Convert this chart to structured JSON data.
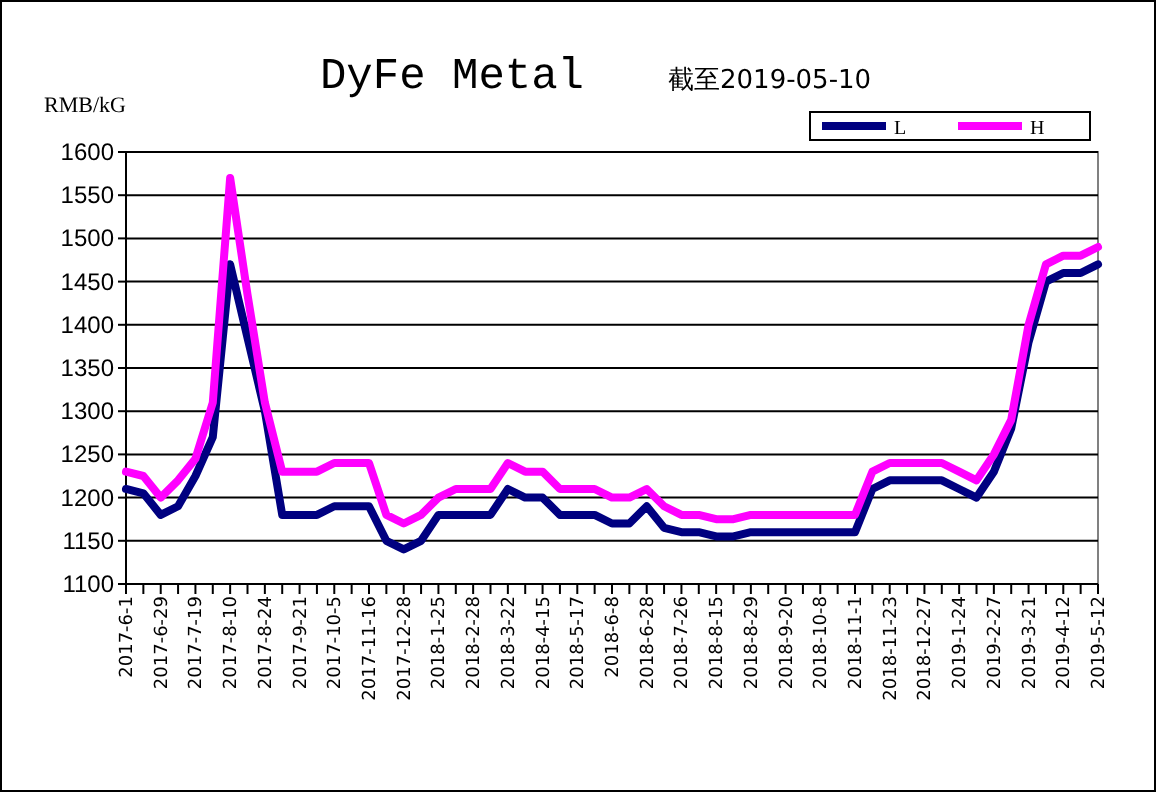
{
  "chart_data": {
    "type": "line",
    "title": "DyFe Metal",
    "subtitle": "截至2019-05-10",
    "ylabel": "RMB/kG",
    "categories": [
      "2017-6-1",
      null,
      "2017-6-29",
      null,
      "2017-7-19",
      null,
      "2017-8-10",
      null,
      "2017-8-24",
      null,
      "2017-9-21",
      null,
      "2017-10-5",
      null,
      "2017-11-16",
      null,
      "2017-12-28",
      null,
      "2018-1-25",
      null,
      "2018-2-28",
      null,
      "2018-3-22",
      null,
      "2018-4-15",
      null,
      "2018-5-17",
      null,
      "2018-6-8",
      null,
      "2018-6-28",
      null,
      "2018-7-26",
      null,
      "2018-8-15",
      null,
      "2018-8-29",
      null,
      "2018-9-20",
      null,
      "2018-10-8",
      null,
      "2018-11-1",
      null,
      "2018-11-23",
      null,
      "2018-12-27",
      null,
      "2019-1-24",
      null,
      "2019-2-27",
      null,
      "2019-3-21",
      null,
      "2019-4-12",
      null,
      "2019-5-12"
    ],
    "series": [
      {
        "name": "L",
        "color": "#000080",
        "values": [
          1210,
          1205,
          1180,
          1190,
          1225,
          1270,
          1470,
          1385,
          1300,
          1180,
          1180,
          1180,
          1190,
          1190,
          1190,
          1150,
          1140,
          1150,
          1180,
          1180,
          1180,
          1180,
          1210,
          1200,
          1200,
          1180,
          1180,
          1180,
          1170,
          1170,
          1190,
          1165,
          1160,
          1160,
          1155,
          1155,
          1160,
          1160,
          1160,
          1160,
          1160,
          1160,
          1160,
          1210,
          1220,
          1220,
          1220,
          1220,
          1210,
          1200,
          1230,
          1280,
          1380,
          1450,
          1460,
          1460,
          1470
        ]
      },
      {
        "name": "H",
        "color": "#ff00ff",
        "values": [
          1230,
          1225,
          1200,
          1220,
          1245,
          1310,
          1570,
          1435,
          1310,
          1230,
          1230,
          1230,
          1240,
          1240,
          1240,
          1180,
          1170,
          1180,
          1200,
          1210,
          1210,
          1210,
          1240,
          1230,
          1230,
          1210,
          1210,
          1210,
          1200,
          1200,
          1210,
          1190,
          1180,
          1180,
          1175,
          1175,
          1180,
          1180,
          1180,
          1180,
          1180,
          1180,
          1180,
          1230,
          1240,
          1240,
          1240,
          1240,
          1230,
          1220,
          1250,
          1290,
          1400,
          1470,
          1480,
          1480,
          1490
        ]
      }
    ],
    "ylim": [
      1100,
      1600
    ],
    "yticks": [
      1100,
      1150,
      1200,
      1250,
      1300,
      1350,
      1400,
      1450,
      1500,
      1550,
      1600
    ],
    "grid": "y",
    "legend": "top right",
    "line_style": "solid",
    "marker": "none"
  }
}
